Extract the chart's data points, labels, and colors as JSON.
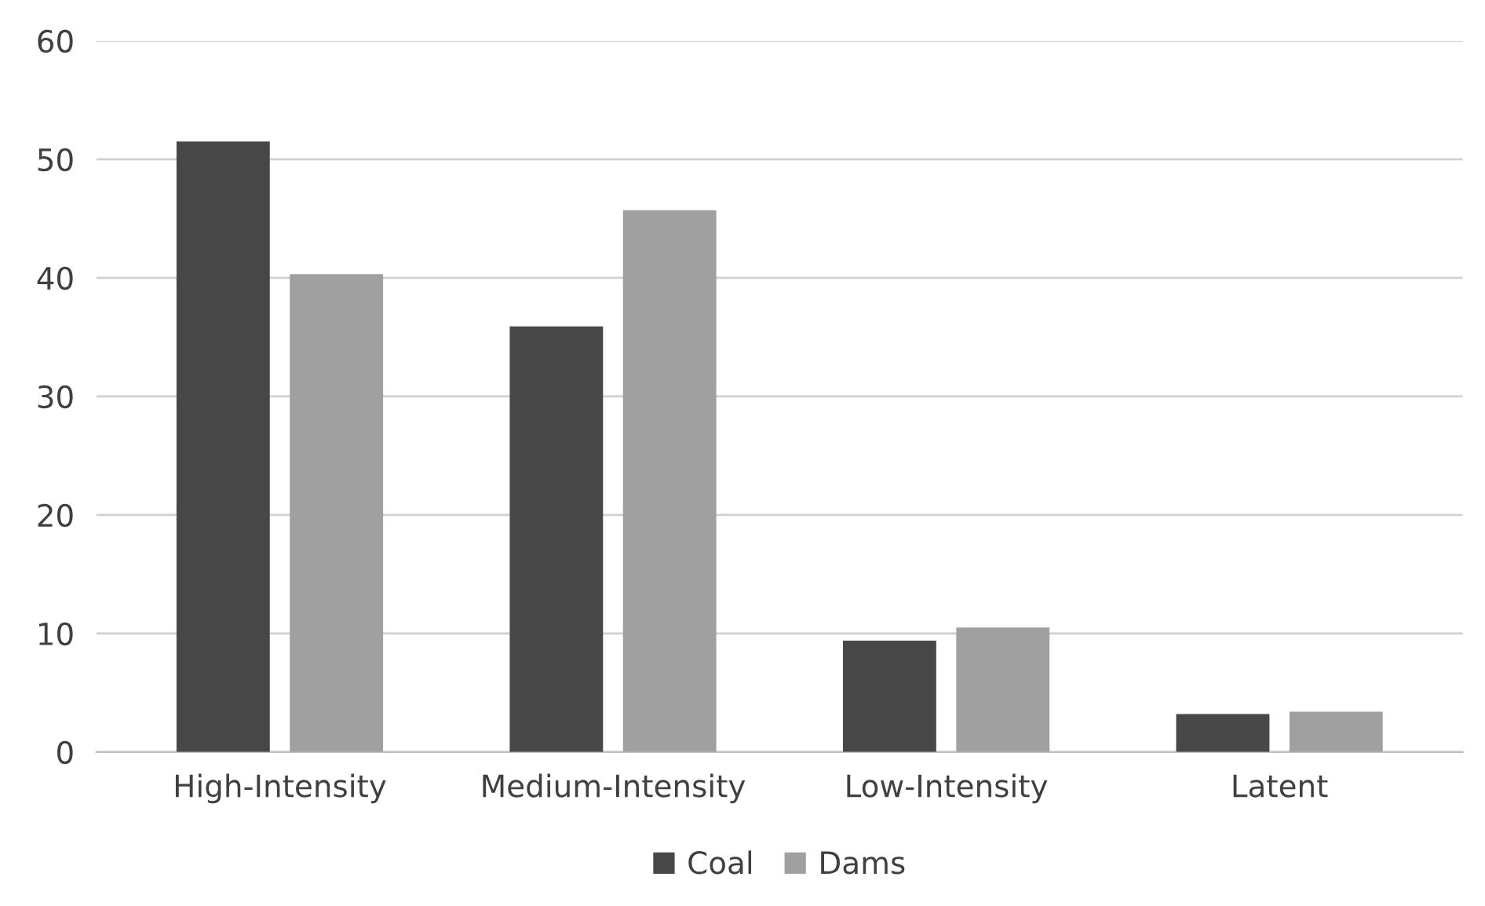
{
  "chart_data": {
    "type": "bar",
    "categories": [
      "High-Intensity",
      "Medium-Intensity",
      "Low-Intensity",
      "Latent"
    ],
    "series": [
      {
        "name": "Coal",
        "color": "#474747",
        "values": [
          51.5,
          35.9,
          9.4,
          3.2
        ]
      },
      {
        "name": "Dams",
        "color": "#a0a0a0",
        "values": [
          40.3,
          45.7,
          10.5,
          3.4
        ]
      }
    ],
    "ylim": [
      0,
      60
    ],
    "yticks": [
      0,
      10,
      20,
      30,
      40,
      50,
      60
    ],
    "grid": "y",
    "legend": "bottom"
  }
}
